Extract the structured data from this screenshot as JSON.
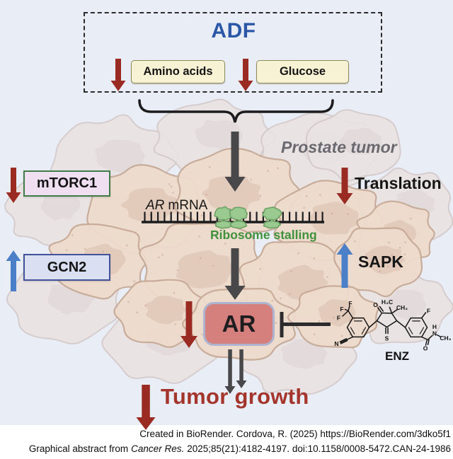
{
  "colors": {
    "bg": "#e9edf5",
    "ink": "#1c1c1e",
    "red": "#992b22",
    "blue": "#4b80c8",
    "gray": "#48484a",
    "adfBlue": "#2b57a7",
    "creamFill": "#f7f2d3",
    "creamBorder": "#8e8a5e",
    "mtorcFill": "#efdff1",
    "mtorcBorder": "#417d49",
    "gcnFill": "#dadff2",
    "gcnBorder": "#41519a",
    "arFill": "#d5807c",
    "arBorder": "#aeb4d0",
    "green": "#41923c",
    "riboFill": "#9aca90",
    "riboStroke": "#6ba162",
    "grayText": "#69696f",
    "growthRed": "#a4352c",
    "cellFill": "#eedbcc",
    "cellStroke": "#c7aa97",
    "paleFill": "#eae3e3",
    "paleStroke": "#d5c9c9",
    "nucleus": "#d9bca9"
  },
  "adf": {
    "title": "ADF",
    "amino_acids": "Amino acids",
    "glucose": "Glucose"
  },
  "tumor": {
    "label": "Prostate tumor"
  },
  "pathway": {
    "mtorc1": "mTORC1",
    "gcn2": "GCN2",
    "translation": "Translation",
    "sapk": "SAPK"
  },
  "mrna": {
    "gene": "AR",
    "molecule": "mRNA",
    "stalling": "Ribosome stalling"
  },
  "ar": {
    "label": "AR"
  },
  "enz": {
    "label": "ENZ",
    "atoms": [
      "F",
      "F",
      "F",
      "N",
      "O",
      "H₃C",
      "CH₃",
      "S",
      "F",
      "O",
      "H",
      "N",
      "CH₃"
    ]
  },
  "growth": {
    "label": "Tumor growth"
  },
  "footer": {
    "line1": "Created in BioRender. Cordova, R. (2025) https://BioRender.com/3dko5f1",
    "line2_prefix": "Graphical abstract from",
    "line2_italic": "Cancer Res.",
    "line2_rest": "2025;85(21):4182-4197. doi:10.1158/0008-5472.CAN-24-1986"
  }
}
